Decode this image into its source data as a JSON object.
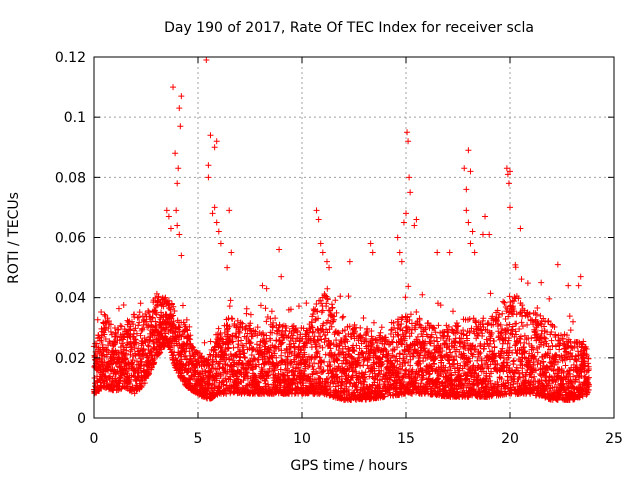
{
  "chart_data": {
    "type": "scatter",
    "title": "Day 190 of 2017, Rate Of TEC Index for receiver scla",
    "xlabel": "GPS time / hours",
    "ylabel": "ROTI / TECUs",
    "xlim": [
      0,
      25
    ],
    "ylim": [
      0,
      0.12
    ],
    "xticks": [
      0,
      5,
      10,
      15,
      20,
      25
    ],
    "yticks": [
      0,
      0.02,
      0.04,
      0.06,
      0.08,
      0.1,
      0.12
    ],
    "xtick_labels": [
      "0",
      "5",
      "10",
      "15",
      "20",
      "25"
    ],
    "ytick_labels": [
      "0",
      "0.02",
      "0.04",
      "0.06",
      "0.08",
      "0.1",
      "0.12"
    ],
    "grid": true,
    "marker": "+",
    "color": "#ff0000",
    "series": [
      {
        "name": "ROTI",
        "profile": {
          "description": "baseline envelope (hours, ROTI range) used to generate the dense point cloud",
          "hours": [
            0,
            0.5,
            1,
            1.5,
            2,
            2.5,
            3,
            3.5,
            4,
            4.5,
            5,
            5.5,
            6,
            6.5,
            7,
            8,
            9,
            10,
            11,
            12,
            13,
            14,
            15,
            16,
            17,
            18,
            19,
            20,
            21,
            22,
            23,
            23.8
          ],
          "low": [
            0.008,
            0.01,
            0.009,
            0.01,
            0.008,
            0.012,
            0.02,
            0.025,
            0.015,
            0.01,
            0.008,
            0.006,
            0.008,
            0.008,
            0.008,
            0.008,
            0.008,
            0.008,
            0.008,
            0.006,
            0.006,
            0.007,
            0.008,
            0.008,
            0.007,
            0.007,
            0.007,
            0.008,
            0.008,
            0.006,
            0.006,
            0.008
          ],
          "high": [
            0.024,
            0.035,
            0.03,
            0.032,
            0.036,
            0.034,
            0.042,
            0.04,
            0.036,
            0.03,
            0.022,
            0.02,
            0.03,
            0.035,
            0.032,
            0.03,
            0.032,
            0.03,
            0.042,
            0.034,
            0.03,
            0.028,
            0.036,
            0.032,
            0.03,
            0.034,
            0.032,
            0.042,
            0.036,
            0.032,
            0.026,
            0.024
          ]
        },
        "peaks": [
          {
            "x": 3.5,
            "y": 0.069
          },
          {
            "x": 3.6,
            "y": 0.067
          },
          {
            "x": 3.7,
            "y": 0.063
          },
          {
            "x": 3.8,
            "y": 0.11
          },
          {
            "x": 3.9,
            "y": 0.088
          },
          {
            "x": 4.0,
            "y": 0.078
          },
          {
            "x": 4.05,
            "y": 0.083
          },
          {
            "x": 4.1,
            "y": 0.103
          },
          {
            "x": 4.15,
            "y": 0.097
          },
          {
            "x": 4.2,
            "y": 0.107
          },
          {
            "x": 4.0,
            "y": 0.064
          },
          {
            "x": 4.1,
            "y": 0.061
          },
          {
            "x": 4.2,
            "y": 0.054
          },
          {
            "x": 3.95,
            "y": 0.069
          },
          {
            "x": 5.4,
            "y": 0.119
          },
          {
            "x": 5.6,
            "y": 0.094
          },
          {
            "x": 5.5,
            "y": 0.084
          },
          {
            "x": 5.5,
            "y": 0.08
          },
          {
            "x": 5.8,
            "y": 0.09
          },
          {
            "x": 5.9,
            "y": 0.092
          },
          {
            "x": 5.7,
            "y": 0.068
          },
          {
            "x": 5.8,
            "y": 0.07
          },
          {
            "x": 5.9,
            "y": 0.065
          },
          {
            "x": 6.0,
            "y": 0.062
          },
          {
            "x": 6.1,
            "y": 0.058
          },
          {
            "x": 6.5,
            "y": 0.069
          },
          {
            "x": 6.6,
            "y": 0.055
          },
          {
            "x": 6.4,
            "y": 0.05
          },
          {
            "x": 8.1,
            "y": 0.044
          },
          {
            "x": 8.3,
            "y": 0.043
          },
          {
            "x": 8.9,
            "y": 0.056
          },
          {
            "x": 9.0,
            "y": 0.047
          },
          {
            "x": 10.7,
            "y": 0.069
          },
          {
            "x": 10.8,
            "y": 0.066
          },
          {
            "x": 10.9,
            "y": 0.058
          },
          {
            "x": 11.0,
            "y": 0.055
          },
          {
            "x": 11.2,
            "y": 0.052
          },
          {
            "x": 11.3,
            "y": 0.05
          },
          {
            "x": 12.3,
            "y": 0.052
          },
          {
            "x": 13.3,
            "y": 0.058
          },
          {
            "x": 13.4,
            "y": 0.055
          },
          {
            "x": 14.6,
            "y": 0.06
          },
          {
            "x": 14.7,
            "y": 0.055
          },
          {
            "x": 14.8,
            "y": 0.052
          },
          {
            "x": 14.9,
            "y": 0.065
          },
          {
            "x": 15.0,
            "y": 0.068
          },
          {
            "x": 15.05,
            "y": 0.095
          },
          {
            "x": 15.1,
            "y": 0.092
          },
          {
            "x": 15.15,
            "y": 0.08
          },
          {
            "x": 15.2,
            "y": 0.075
          },
          {
            "x": 15.5,
            "y": 0.066
          },
          {
            "x": 15.4,
            "y": 0.064
          },
          {
            "x": 16.5,
            "y": 0.055
          },
          {
            "x": 17.1,
            "y": 0.055
          },
          {
            "x": 17.8,
            "y": 0.083
          },
          {
            "x": 17.9,
            "y": 0.076
          },
          {
            "x": 18.0,
            "y": 0.089
          },
          {
            "x": 18.1,
            "y": 0.082
          },
          {
            "x": 17.9,
            "y": 0.069
          },
          {
            "x": 18.0,
            "y": 0.065
          },
          {
            "x": 18.2,
            "y": 0.062
          },
          {
            "x": 18.1,
            "y": 0.058
          },
          {
            "x": 18.3,
            "y": 0.055
          },
          {
            "x": 18.7,
            "y": 0.061
          },
          {
            "x": 18.8,
            "y": 0.067
          },
          {
            "x": 19.0,
            "y": 0.061
          },
          {
            "x": 19.85,
            "y": 0.083
          },
          {
            "x": 19.9,
            "y": 0.081
          },
          {
            "x": 20.0,
            "y": 0.082
          },
          {
            "x": 19.95,
            "y": 0.078
          },
          {
            "x": 20.0,
            "y": 0.07
          },
          {
            "x": 20.5,
            "y": 0.063
          },
          {
            "x": 21.5,
            "y": 0.045
          },
          {
            "x": 22.3,
            "y": 0.051
          },
          {
            "x": 22.8,
            "y": 0.044
          },
          {
            "x": 23.4,
            "y": 0.047
          },
          {
            "x": 23.3,
            "y": 0.044
          }
        ]
      }
    ]
  }
}
